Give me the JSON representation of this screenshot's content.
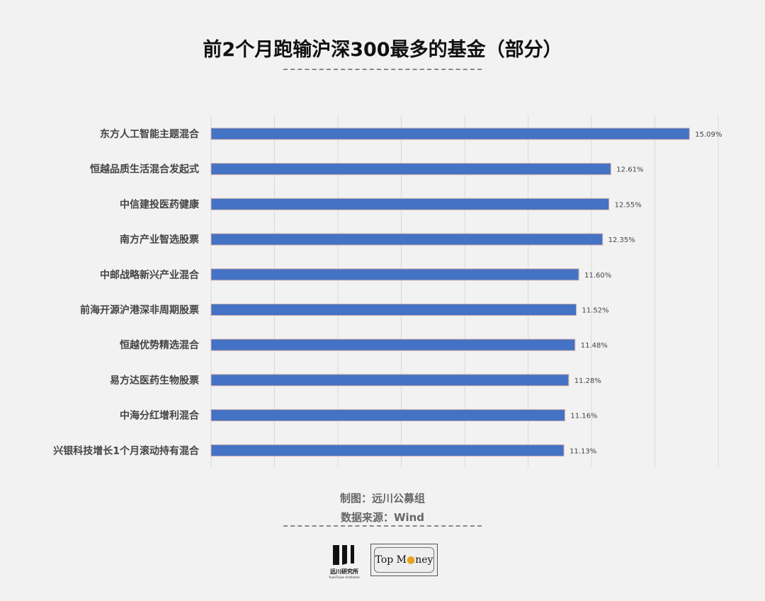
{
  "title": "前2个月跑输沪深300最多的基金（部分）",
  "footer": {
    "made_by": "制图：远川公募组",
    "source": "数据来源：Wind"
  },
  "logos": {
    "left": "远川研究所",
    "left_sub": "YuanChuan Institution",
    "right": "Top Money"
  },
  "colors": {
    "bar": "#4472c4",
    "grid": "#d9d9d9",
    "background": "#f2f2f2"
  },
  "chart_data": {
    "type": "bar",
    "orientation": "horizontal",
    "categories": [
      "东方人工智能主题混合",
      "恒越品质生活混合发起式",
      "中信建投医药健康",
      "南方产业智选股票",
      "中邮战略新兴产业混合",
      "前海开源沪港深非周期股票",
      "恒越优势精选混合",
      "易方达医药生物股票",
      "中海分红增利混合",
      "兴银科技增长1个月滚动持有混合"
    ],
    "values": [
      15.09,
      12.61,
      12.55,
      12.35,
      11.6,
      11.52,
      11.48,
      11.28,
      11.16,
      11.13
    ],
    "data_labels": [
      "15.09%",
      "12.61%",
      "12.55%",
      "12.35%",
      "11.60%",
      "11.52%",
      "11.48%",
      "11.28%",
      "11.16%",
      "11.13%"
    ],
    "xlim": [
      0,
      16
    ],
    "x_grid_step": 2,
    "grid": true,
    "legend": "none"
  }
}
